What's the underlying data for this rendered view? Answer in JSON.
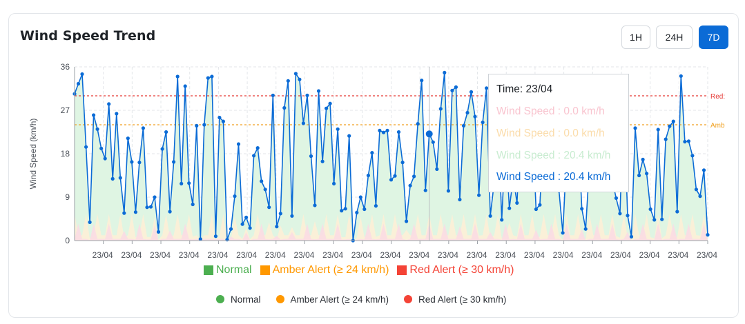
{
  "header": {
    "title": "Wind Speed Trend",
    "ranges": [
      "1H",
      "24H",
      "7D"
    ],
    "active_range": "7D"
  },
  "colors": {
    "line": "#0b6bd6",
    "normal": "#4caf50",
    "amber": "#ff9800",
    "red": "#f44336",
    "amber_line": "#f0a020",
    "red_line": "#e53935",
    "normal_fill": "#dff5e3",
    "amber_fill": "#fdf0d6",
    "red_fill": "#fbdce3"
  },
  "legend_top": [
    {
      "label": "Normal",
      "color": "#4caf50"
    },
    {
      "label": "Amber Alert (≥ 24 km/h)",
      "color": "#ff9800"
    },
    {
      "label": "Red Alert (≥ 30 km/h)",
      "color": "#f44336"
    }
  ],
  "legend_bottom": [
    {
      "label": "Normal",
      "color": "#4caf50"
    },
    {
      "label": "Amber Alert (≥ 24 km/h)",
      "color": "#ff9800"
    },
    {
      "label": "Red Alert (≥ 30 km/h)",
      "color": "#f44336"
    }
  ],
  "tooltip": {
    "title": "Time: 23/04",
    "rows": [
      {
        "text": "Wind Speed : 0.0 km/h",
        "color": "#f9c4cf"
      },
      {
        "text": "Wind Speed : 0.0 km/h",
        "color": "#fbdcaa"
      },
      {
        "text": "Wind Speed : 20.4 km/h",
        "color": "#c8ecd0"
      },
      {
        "text": "Wind Speed : 20.4 km/h",
        "color": "#0b6bd6"
      }
    ]
  },
  "chart_data": {
    "type": "line",
    "title": "Wind Speed Trend",
    "ylabel": "Wind Speed (km/h)",
    "xlabel": "",
    "ylim": [
      0,
      36
    ],
    "yticks": [
      0,
      9,
      18,
      27,
      36
    ],
    "xtick_labels": [
      "23/04",
      "23/04",
      "23/04",
      "23/04",
      "23/04",
      "23/04",
      "23/04",
      "23/04",
      "23/04",
      "23/04",
      "23/04",
      "23/04",
      "23/04",
      "23/04",
      "23/04",
      "23/04",
      "23/04",
      "23/04",
      "23/04",
      "23/04",
      "23/04",
      "23/04"
    ],
    "grid": true,
    "thresholds": [
      {
        "label": "Red:",
        "value": 30
      },
      {
        "label": "Amb",
        "value": 24
      }
    ],
    "series": [
      {
        "name": "Wind Speed",
        "values": [
          30.4,
          32.5,
          34.5,
          19.4,
          3.8,
          26.0,
          23.1,
          19.1,
          17.0,
          28.3,
          12.8,
          26.3,
          13.0,
          5.7,
          21.2,
          16.3,
          5.9,
          16.2,
          23.3,
          6.9,
          7.0,
          9.0,
          1.8,
          19.0,
          22.5,
          6.0,
          16.3,
          34.0,
          11.8,
          32.0,
          11.9,
          7.5,
          23.8,
          0.3,
          24.0,
          33.7,
          34.0,
          0.9,
          25.5,
          24.7,
          0.2,
          2.4,
          9.2,
          20.0,
          3.4,
          4.8,
          2.6,
          17.6,
          19.2,
          12.3,
          10.6,
          6.9,
          30.1,
          2.9,
          5.6,
          27.5,
          33.1,
          5.1,
          34.6,
          33.4,
          24.3,
          30.1,
          17.5,
          7.3,
          31.0,
          16.4,
          27.4,
          28.4,
          11.8,
          23.1,
          6.2,
          6.6,
          21.7,
          0.0,
          5.8,
          9.0,
          6.5,
          13.5,
          18.2,
          7.2,
          22.8,
          22.4,
          22.8,
          12.6,
          13.4,
          22.5,
          16.2,
          4.0,
          11.4,
          13.3,
          24.2,
          33.2,
          10.4,
          22.1,
          20.4,
          14.8,
          27.3,
          34.8,
          10.3,
          31.1,
          31.8,
          8.5,
          23.8,
          26.5,
          30.8,
          25.7,
          9.4,
          24.5,
          31.6,
          5.1,
          12.0,
          25.7,
          4.3,
          21.2,
          6.7,
          13.0,
          7.8,
          25.4,
          13.3,
          17.8,
          24.5,
          6.5,
          7.4,
          22.9,
          29.6,
          28.0,
          29.3,
          10.3,
          1.6,
          17.6,
          15.6,
          21.0,
          23.1,
          6.6,
          2.4,
          15.8,
          22.5,
          24.3,
          31.0,
          19.6,
          33.6,
          12.3,
          8.8,
          5.6,
          27.9,
          5.2,
          0.8,
          23.3,
          13.5,
          16.8,
          13.9,
          6.5,
          4.3,
          23.0,
          4.4,
          21.0,
          23.7,
          24.7,
          6.0,
          34.1,
          20.5,
          20.6,
          17.6,
          10.6,
          9.2,
          14.6,
          1.2
        ]
      }
    ]
  }
}
